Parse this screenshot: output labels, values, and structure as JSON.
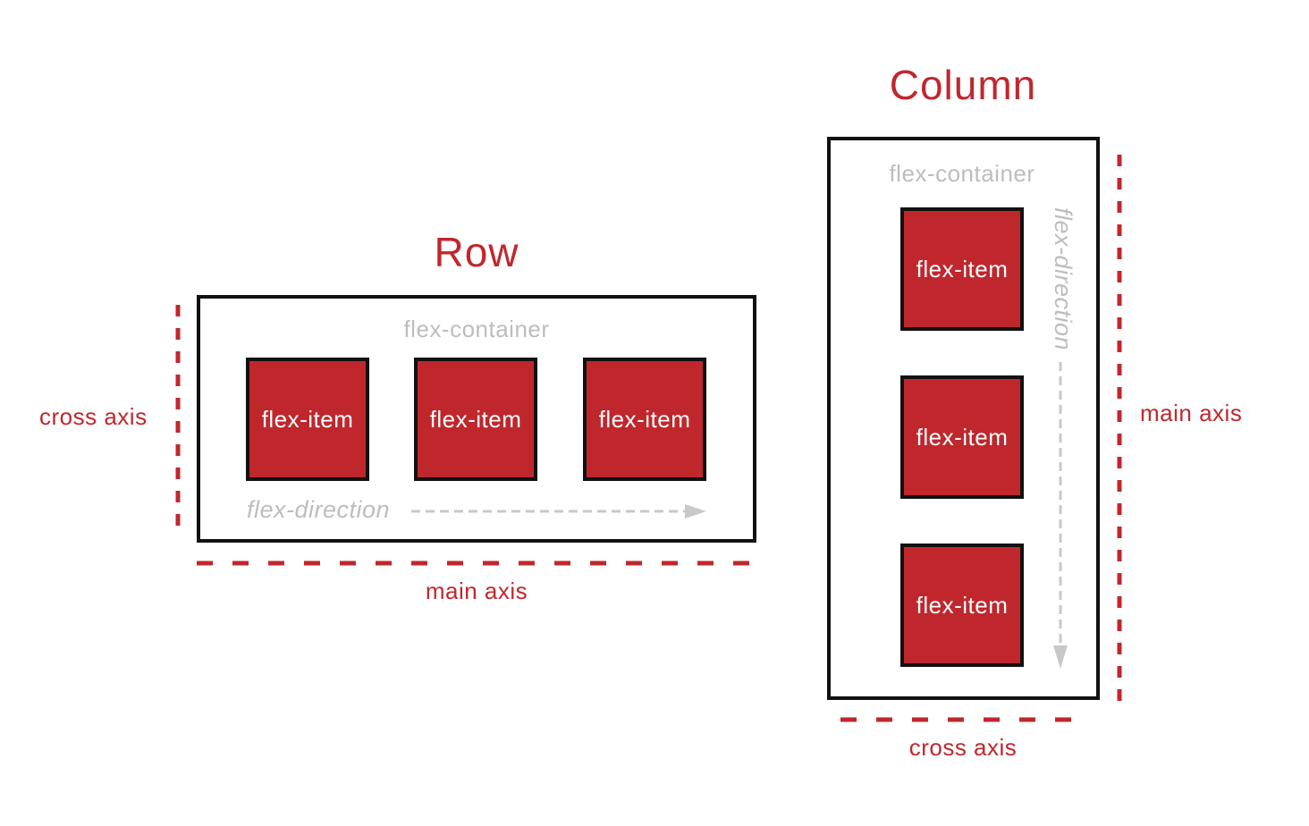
{
  "row": {
    "title": "Row",
    "container_label": "flex-container",
    "items": [
      "flex-item",
      "flex-item",
      "flex-item"
    ],
    "direction_label": "flex-direction",
    "main_axis_label": "main axis",
    "cross_axis_label": "cross axis"
  },
  "column": {
    "title": "Column",
    "container_label": "flex-container",
    "items": [
      "flex-item",
      "flex-item",
      "flex-item"
    ],
    "direction_label": "flex-direction",
    "main_axis_label": "main axis",
    "cross_axis_label": "cross axis"
  },
  "colors": {
    "accent": "#c0272d",
    "muted": "#bdbdbd",
    "border": "#111111"
  }
}
